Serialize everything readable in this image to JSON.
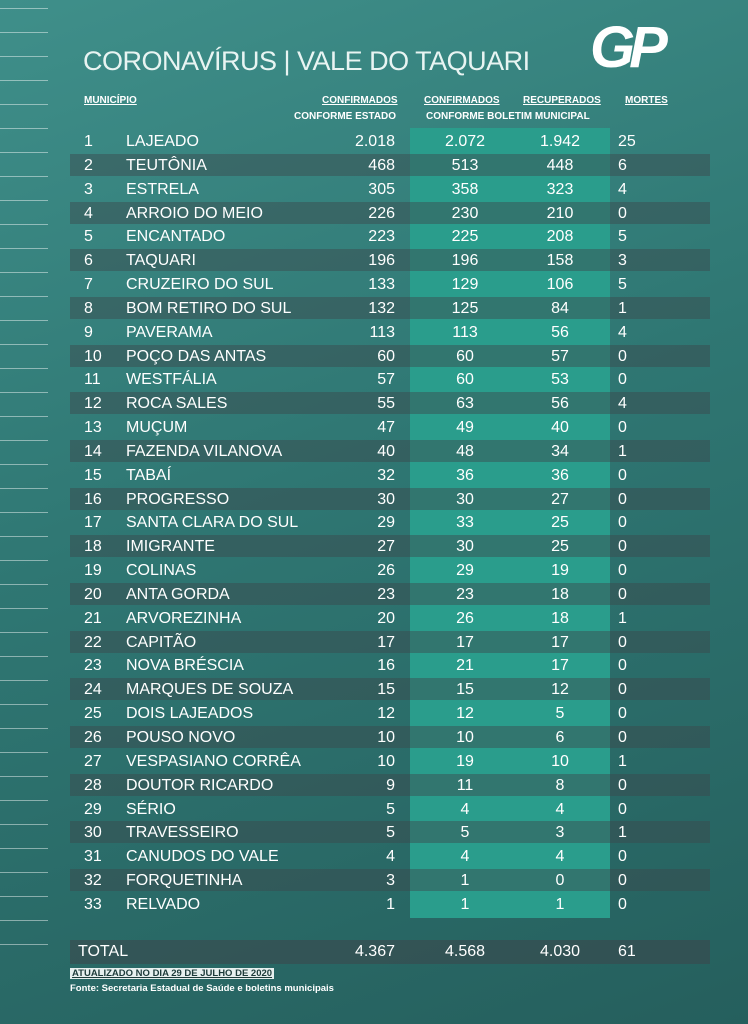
{
  "logo": "GP",
  "title": "CORONAVÍRUS | VALE DO TAQUARI",
  "header": {
    "municipio": "MUNICÍPIO",
    "confirmados_estado": "CONFIRMADOS",
    "conforme_estado": "CONFORME ESTADO",
    "confirmados_municipal": "CONFIRMADOS",
    "recuperados": "RECUPERADOS",
    "conforme_boletim": "CONFORME BOLETIM MUNICIPAL",
    "mortes": "MORTES"
  },
  "table": {
    "rows": [
      [
        1,
        "LAJEADO",
        "2.018",
        "2.072",
        "1.942",
        25
      ],
      [
        2,
        "TEUTÔNIA",
        468,
        513,
        448,
        6
      ],
      [
        3,
        "ESTRELA",
        305,
        358,
        323,
        4
      ],
      [
        4,
        "ARROIO DO MEIO",
        226,
        230,
        210,
        0
      ],
      [
        5,
        "ENCANTADO",
        223,
        225,
        208,
        5
      ],
      [
        6,
        "TAQUARI",
        196,
        196,
        158,
        3
      ],
      [
        7,
        "CRUZEIRO DO SUL",
        133,
        129,
        106,
        5
      ],
      [
        8,
        "BOM RETIRO DO SUL",
        132,
        125,
        84,
        1
      ],
      [
        9,
        "PAVERAMA",
        113,
        113,
        56,
        4
      ],
      [
        10,
        "POÇO DAS ANTAS",
        60,
        60,
        57,
        0
      ],
      [
        11,
        "WESTFÁLIA",
        57,
        60,
        53,
        0
      ],
      [
        12,
        "ROCA SALES",
        55,
        63,
        56,
        4
      ],
      [
        13,
        "MUÇUM",
        47,
        49,
        40,
        0
      ],
      [
        14,
        "FAZENDA VILANOVA",
        40,
        48,
        34,
        1
      ],
      [
        15,
        "TABAÍ",
        32,
        36,
        36,
        0
      ],
      [
        16,
        "PROGRESSO",
        30,
        30,
        27,
        0
      ],
      [
        17,
        "SANTA CLARA DO SUL",
        29,
        33,
        25,
        0
      ],
      [
        18,
        "IMIGRANTE",
        27,
        30,
        25,
        0
      ],
      [
        19,
        "COLINAS",
        26,
        29,
        19,
        0
      ],
      [
        20,
        "ANTA GORDA",
        23,
        23,
        18,
        0
      ],
      [
        21,
        "ARVOREZINHA",
        20,
        26,
        18,
        1
      ],
      [
        22,
        "CAPITÃO",
        17,
        17,
        17,
        0
      ],
      [
        23,
        "NOVA BRÉSCIA",
        16,
        21,
        17,
        0
      ],
      [
        24,
        "MARQUES DE SOUZA",
        15,
        15,
        12,
        0
      ],
      [
        25,
        "DOIS LAJEADOS",
        12,
        12,
        5,
        0
      ],
      [
        26,
        "POUSO NOVO",
        10,
        10,
        6,
        0
      ],
      [
        27,
        "VESPASIANO CORRÊA",
        10,
        19,
        10,
        1
      ],
      [
        28,
        "DOUTOR RICARDO",
        9,
        11,
        8,
        0
      ],
      [
        29,
        "SÉRIO",
        5,
        4,
        4,
        0
      ],
      [
        30,
        "TRAVESSEIRO",
        5,
        5,
        3,
        1
      ],
      [
        31,
        "CANUDOS DO VALE",
        4,
        4,
        4,
        0
      ],
      [
        32,
        "FORQUETINHA",
        3,
        1,
        0,
        0
      ],
      [
        33,
        "RELVADO",
        1,
        1,
        1,
        0
      ]
    ],
    "total": [
      "TOTAL",
      "4.367",
      "4.568",
      "4.030",
      61
    ]
  },
  "footer": {
    "updated": "ATUALIZADO NO DIA 29 DE JULHO DE 2020",
    "source": "Fonte: Secretaria Estadual de Saúde e boletins municipais"
  }
}
